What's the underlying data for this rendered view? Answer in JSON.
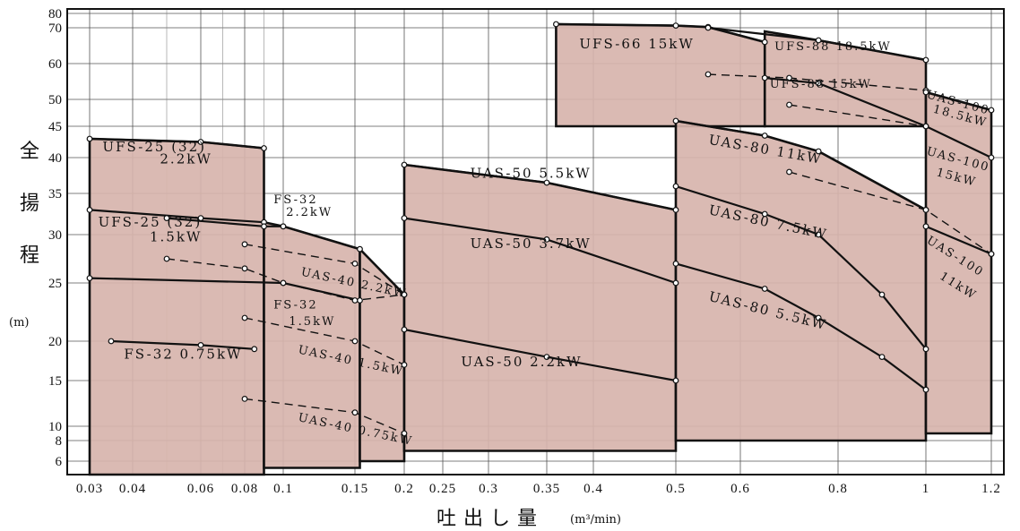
{
  "chart_data": {
    "type": "line",
    "title": "",
    "xlabel": "吐出し量",
    "xunit": "(m³/min)",
    "ylabel": "全揚程",
    "yunit": "(m)",
    "xlim": [
      0.03,
      1.2
    ],
    "ylim": [
      5,
      80
    ],
    "grid": true,
    "x_ticks": [
      {
        "v": 0.03,
        "t": "0.03"
      },
      {
        "v": 0.04,
        "t": "0.04"
      },
      {
        "v": 0.06,
        "t": "0.06"
      },
      {
        "v": 0.08,
        "t": "0.08"
      },
      {
        "v": 0.1,
        "t": "0.1"
      },
      {
        "v": 0.15,
        "t": "0.15"
      },
      {
        "v": 0.2,
        "t": "0.2"
      },
      {
        "v": 0.25,
        "t": "0.25"
      },
      {
        "v": 0.3,
        "t": "0.3"
      },
      {
        "v": 0.35,
        "t": "0.35"
      },
      {
        "v": 0.4,
        "t": "0.4"
      },
      {
        "v": 0.5,
        "t": "0.5"
      },
      {
        "v": 0.6,
        "t": "0.6"
      },
      {
        "v": 0.8,
        "t": "0.8"
      },
      {
        "v": 1,
        "t": "1"
      },
      {
        "v": 1.2,
        "t": "1.2"
      }
    ],
    "y_ticks": [
      {
        "v": 6,
        "t": "6"
      },
      {
        "v": 8,
        "t": "8"
      },
      {
        "v": 10,
        "t": "10"
      },
      {
        "v": 15,
        "t": "15"
      },
      {
        "v": 20,
        "t": "20"
      },
      {
        "v": 25,
        "t": "25"
      },
      {
        "v": 30,
        "t": "30"
      },
      {
        "v": 35,
        "t": "35"
      },
      {
        "v": 40,
        "t": "40"
      },
      {
        "v": 45,
        "t": "45"
      },
      {
        "v": 50,
        "t": "50"
      },
      {
        "v": 60,
        "t": "60"
      },
      {
        "v": 70,
        "t": "70"
      },
      {
        "v": 80,
        "t": "80"
      }
    ],
    "regions": [
      {
        "top": [
          [
            0.03,
            43
          ],
          [
            0.06,
            42.5
          ],
          [
            0.09,
            41.5
          ]
        ],
        "xr": 0.09,
        "floor": 5
      },
      {
        "top": [
          [
            0.09,
            31.5
          ],
          [
            0.1,
            31
          ],
          [
            0.155,
            28.5
          ]
        ],
        "xl": 0.09,
        "xr": 0.155,
        "floor": 5.5
      },
      {
        "top": [
          [
            0.155,
            28.5
          ],
          [
            0.2,
            24
          ]
        ],
        "xl": 0.155,
        "xr": 0.2,
        "floor": 6
      },
      {
        "top": [
          [
            0.2,
            39
          ],
          [
            0.35,
            36.5
          ],
          [
            0.5,
            33
          ]
        ],
        "xl": 0.2,
        "xr": 0.5,
        "floor": 7
      },
      {
        "top": [
          [
            0.36,
            72.5
          ],
          [
            0.5,
            71.5
          ],
          [
            0.55,
            70.5
          ],
          [
            0.65,
            66
          ]
        ],
        "xl": 0.36,
        "xr": 0.65,
        "floor": 45
      },
      {
        "top": [
          [
            0.65,
            69
          ],
          [
            0.76,
            66.5
          ],
          [
            1,
            61
          ]
        ],
        "xl": 0.65,
        "xr": 1,
        "floor": 45
      },
      {
        "top": [
          [
            0.5,
            46
          ],
          [
            0.55,
            45
          ],
          [
            0.65,
            43.5
          ],
          [
            0.76,
            41
          ],
          [
            1,
            33
          ]
        ],
        "xl": 0.5,
        "xr": 1,
        "floor": 8
      },
      {
        "top": [
          [
            1,
            52
          ],
          [
            1.2,
            48
          ]
        ],
        "xl": 1,
        "xr": 1.2,
        "floor": 9
      }
    ],
    "series": [
      {
        "name": "UFS-25 (32) 2.2kW",
        "style": "solid",
        "points": [
          [
            0.03,
            43
          ],
          [
            0.06,
            42.5
          ],
          [
            0.09,
            41.5
          ]
        ]
      },
      {
        "name": "UFS-25 (32) 1.5kW",
        "style": "solid",
        "points": [
          [
            0.03,
            33
          ],
          [
            0.06,
            32
          ],
          [
            0.09,
            31.5
          ]
        ]
      },
      {
        "name": "FS-32 0.75kW",
        "style": "solid",
        "points": [
          [
            0.035,
            20
          ],
          [
            0.06,
            19.5
          ],
          [
            0.085,
            19
          ]
        ]
      },
      {
        "name": "FS-32 2.2kW",
        "style": "solid",
        "points": [
          [
            0.05,
            32
          ],
          [
            0.09,
            31
          ],
          [
            0.1,
            31
          ],
          [
            0.155,
            28.5
          ]
        ]
      },
      {
        "name": "FS-32 1.5kW",
        "style": "solid",
        "points": [
          [
            0.03,
            25.5
          ],
          [
            0.1,
            25
          ],
          [
            0.155,
            23.5
          ]
        ]
      },
      {
        "name": "UAS-40 2.2kW",
        "style": "dashed",
        "points": [
          [
            0.05,
            27.5
          ],
          [
            0.08,
            26.5
          ],
          [
            0.1,
            25
          ],
          [
            0.15,
            23.5
          ],
          [
            0.2,
            24
          ]
        ]
      },
      {
        "name": "UAS-40 2.2kW",
        "style": "dashed",
        "points": [
          [
            0.08,
            29
          ],
          [
            0.15,
            27
          ],
          [
            0.2,
            24
          ]
        ]
      },
      {
        "name": "UAS-40 1.5kW",
        "style": "dashed",
        "points": [
          [
            0.08,
            22
          ],
          [
            0.15,
            20
          ],
          [
            0.2,
            17
          ]
        ]
      },
      {
        "name": "UAS-40 0.75kW",
        "style": "dashed",
        "points": [
          [
            0.08,
            13
          ],
          [
            0.15,
            11.5
          ],
          [
            0.2,
            9
          ]
        ]
      },
      {
        "name": "UAS-50 5.5kW",
        "style": "solid",
        "points": [
          [
            0.2,
            39
          ],
          [
            0.35,
            36.5
          ],
          [
            0.5,
            33
          ]
        ]
      },
      {
        "name": "UAS-50 3.7kW",
        "style": "solid",
        "points": [
          [
            0.2,
            32
          ],
          [
            0.35,
            29.5
          ],
          [
            0.5,
            25
          ]
        ]
      },
      {
        "name": "UAS-50 2.2kW",
        "style": "solid",
        "points": [
          [
            0.2,
            21
          ],
          [
            0.35,
            18
          ],
          [
            0.5,
            15
          ]
        ]
      },
      {
        "name": "UFS-66 15kW",
        "style": "solid",
        "points": [
          [
            0.36,
            72.5
          ],
          [
            0.5,
            71.5
          ],
          [
            0.55,
            70.5
          ],
          [
            0.65,
            66
          ]
        ]
      },
      {
        "name": "UFS-88 18.5kW",
        "style": "solid",
        "points": [
          [
            0.55,
            70
          ],
          [
            0.76,
            66.5
          ],
          [
            1,
            61
          ]
        ]
      },
      {
        "name": "UFS-88 15kW",
        "style": "solid",
        "points": [
          [
            0.65,
            56
          ],
          [
            0.76,
            54.5
          ],
          [
            1,
            45
          ]
        ]
      },
      {
        "name": "UFS-88 15kW",
        "style": "dashed",
        "points": [
          [
            0.55,
            57
          ],
          [
            0.7,
            56
          ],
          [
            1,
            52.5
          ]
        ]
      },
      {
        "name": "UAS-80 11kW",
        "style": "solid",
        "points": [
          [
            0.5,
            46
          ],
          [
            0.65,
            43.5
          ],
          [
            0.76,
            41
          ],
          [
            1,
            33
          ]
        ]
      },
      {
        "name": "UAS-80 11kW",
        "style": "dashed",
        "points": [
          [
            0.7,
            49
          ],
          [
            1,
            45
          ]
        ]
      },
      {
        "name": "UAS-80 7.5kW",
        "style": "solid",
        "points": [
          [
            0.5,
            36
          ],
          [
            0.65,
            32.5
          ],
          [
            0.76,
            30
          ],
          [
            0.9,
            24
          ],
          [
            1,
            19
          ]
        ]
      },
      {
        "name": "UAS-80 5.5kW",
        "style": "solid",
        "points": [
          [
            0.5,
            27
          ],
          [
            0.65,
            24.5
          ],
          [
            0.76,
            22
          ],
          [
            0.9,
            18
          ],
          [
            1,
            14
          ]
        ]
      },
      {
        "name": "UAS-100 18.5kW",
        "style": "solid",
        "points": [
          [
            1,
            52
          ],
          [
            1.2,
            48
          ]
        ]
      },
      {
        "name": "UAS-100 15kW",
        "style": "solid",
        "points": [
          [
            1,
            45
          ],
          [
            1.2,
            40
          ]
        ]
      },
      {
        "name": "UAS-100 11kW",
        "style": "solid",
        "points": [
          [
            1,
            31
          ],
          [
            1.2,
            28
          ]
        ]
      },
      {
        "name": "UAS-100 11kW",
        "style": "dashed",
        "points": [
          [
            0.7,
            38
          ],
          [
            1,
            33
          ],
          [
            1.2,
            28
          ]
        ]
      }
    ],
    "labels": [
      {
        "t": "UFS-25 (32)",
        "x": 0.033,
        "y": 41
      },
      {
        "t": "2.2kW",
        "x": 0.048,
        "y": 39.2
      },
      {
        "t": "UFS-25 (32)",
        "x": 0.032,
        "y": 31
      },
      {
        "t": "1.5kW",
        "x": 0.045,
        "y": 29.3
      },
      {
        "t": "FS-32",
        "x": 0.095,
        "y": 33.8,
        "small": true
      },
      {
        "t": "2.2kW",
        "x": 0.102,
        "y": 32.3,
        "small": true
      },
      {
        "t": "FS-32",
        "x": 0.095,
        "y": 22.8,
        "small": true
      },
      {
        "t": "1.5kW",
        "x": 0.104,
        "y": 21.4,
        "small": true
      },
      {
        "t": "UAS-40 2.2kW",
        "x": 0.112,
        "y": 25.8,
        "small": true,
        "rot": 12
      },
      {
        "t": "UAS-40 1.5kW",
        "x": 0.11,
        "y": 18.5,
        "small": true,
        "rot": 12
      },
      {
        "t": "UAS-40 0.75kW",
        "x": 0.11,
        "y": 10.6,
        "small": true,
        "rot": 12
      },
      {
        "t": "FS-32 0.75kW",
        "x": 0.038,
        "y": 17.8
      },
      {
        "t": "UAS-50 5.5kW",
        "x": 0.28,
        "y": 37.2
      },
      {
        "t": "UAS-50 3.7kW",
        "x": 0.28,
        "y": 28.6
      },
      {
        "t": "UAS-50 2.2kW",
        "x": 0.27,
        "y": 16.8
      },
      {
        "t": "UFS-66 15kW",
        "x": 0.385,
        "y": 64.2
      },
      {
        "t": "UFS-88 18.5kW",
        "x": 0.67,
        "y": 63.7,
        "small": true
      },
      {
        "t": "UFS-88 15kW",
        "x": 0.66,
        "y": 53.2,
        "small": true
      },
      {
        "t": "UAS-80 11kW",
        "x": 0.55,
        "y": 42.2,
        "rot": 10
      },
      {
        "t": "UAS-80 7.5kW",
        "x": 0.55,
        "y": 32.5,
        "rot": 12
      },
      {
        "t": "UAS-80 5.5kW",
        "x": 0.55,
        "y": 23.5,
        "rot": 14
      },
      {
        "t": "UAS-100",
        "x": 1.0,
        "y": 50.5,
        "small": true,
        "rot": 15
      },
      {
        "t": "18.5kW",
        "x": 1.02,
        "y": 47.6,
        "small": true,
        "rot": 15
      },
      {
        "t": "UAS-100",
        "x": 1.0,
        "y": 40.5,
        "small": true,
        "rot": 15
      },
      {
        "t": "15kW",
        "x": 1.03,
        "y": 37.5,
        "small": true,
        "rot": 15
      },
      {
        "t": "UAS-100",
        "x": 1.0,
        "y": 29.2,
        "small": true,
        "rot": 32
      },
      {
        "t": "11kW",
        "x": 1.04,
        "y": 25.5,
        "small": true,
        "rot": 32
      }
    ]
  }
}
